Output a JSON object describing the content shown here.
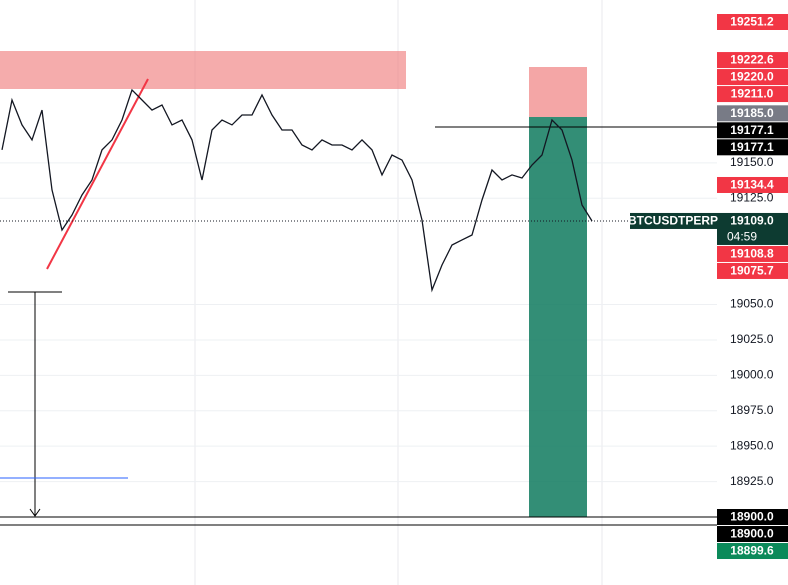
{
  "chart_data": {
    "type": "line",
    "color": "#131722",
    "values": [
      19159.2,
      19194.4,
      19176.8,
      19166.2,
      19187.3,
      19130.9,
      19102.6,
      19113.2,
      19127.3,
      19137.9,
      19159.2,
      19166.2,
      19180.3,
      19201.5,
      19194.4,
      19187.3,
      19190.9,
      19176.8,
      19180.3,
      19166.2,
      19137.9,
      19173.2,
      19180.3,
      19176.8,
      19183.8,
      19183.8,
      19197.9,
      19183.8,
      19173.2,
      19173.2,
      19162.6,
      19159.2,
      19166.2,
      19162.6,
      19162.6,
      19159.2,
      19166.2,
      19159.2,
      19141.5,
      19155.6,
      19152.0,
      19137.9,
      19109.7,
      19060.3,
      19077.9,
      19092.0,
      19095.6,
      19099.1,
      19123.8,
      19145.0,
      19137.9,
      19141.5,
      19139.3,
      19148.5,
      19155.6,
      19180.3,
      19173.2,
      19152.0,
      19120.3,
      19109.0
    ],
    "ylim": [
      18852,
      19265
    ],
    "yticks": [
      {
        "value": 19150,
        "label": "19150.0"
      },
      {
        "value": 19125,
        "label": "19125.0"
      },
      {
        "value": 19050,
        "label": "19050.0"
      },
      {
        "value": 19025,
        "label": "19025.0"
      },
      {
        "value": 19000,
        "label": "19000.0"
      },
      {
        "value": 18975,
        "label": "18975.0"
      },
      {
        "value": 18950,
        "label": "18950.0"
      },
      {
        "value": 18925,
        "label": "18925.0"
      }
    ],
    "grid": true,
    "price_badges": [
      {
        "value": 19251.2,
        "label": "19251.2",
        "color": "#f23645"
      },
      {
        "value": 19222.6,
        "label": "19222.6",
        "color": "#f23645"
      },
      {
        "value": 19220.0,
        "label": "19220.0",
        "color": "#f23645"
      },
      {
        "value": 19211.0,
        "label": "19211.0",
        "color": "#f23645"
      },
      {
        "value": 19185.0,
        "label": "19185.0",
        "color": "#787b86"
      },
      {
        "value": 19177.1,
        "label": "19177.1",
        "color": "#000000"
      },
      {
        "value": 19177.1,
        "label": "19177.1",
        "color": "#000000"
      },
      {
        "value": 19134.4,
        "label": "19134.4",
        "color": "#f23645"
      },
      {
        "value": 19109.0,
        "label": "19109.0",
        "color": "#0d3b31",
        "name": "BTCUSDTPERP",
        "countdown": "04:59"
      },
      {
        "value": 19108.8,
        "label": "19108.8",
        "color": "#f23645"
      },
      {
        "value": 19075.7,
        "label": "19075.7",
        "color": "#f23645"
      },
      {
        "value": 18900.0,
        "label": "18900.0",
        "color": "#000000"
      },
      {
        "value": 18900.0,
        "label": "18900.0",
        "color": "#000000"
      },
      {
        "value": 18899.6,
        "label": "18899.6",
        "color": "#0b8a5a"
      }
    ]
  }
}
